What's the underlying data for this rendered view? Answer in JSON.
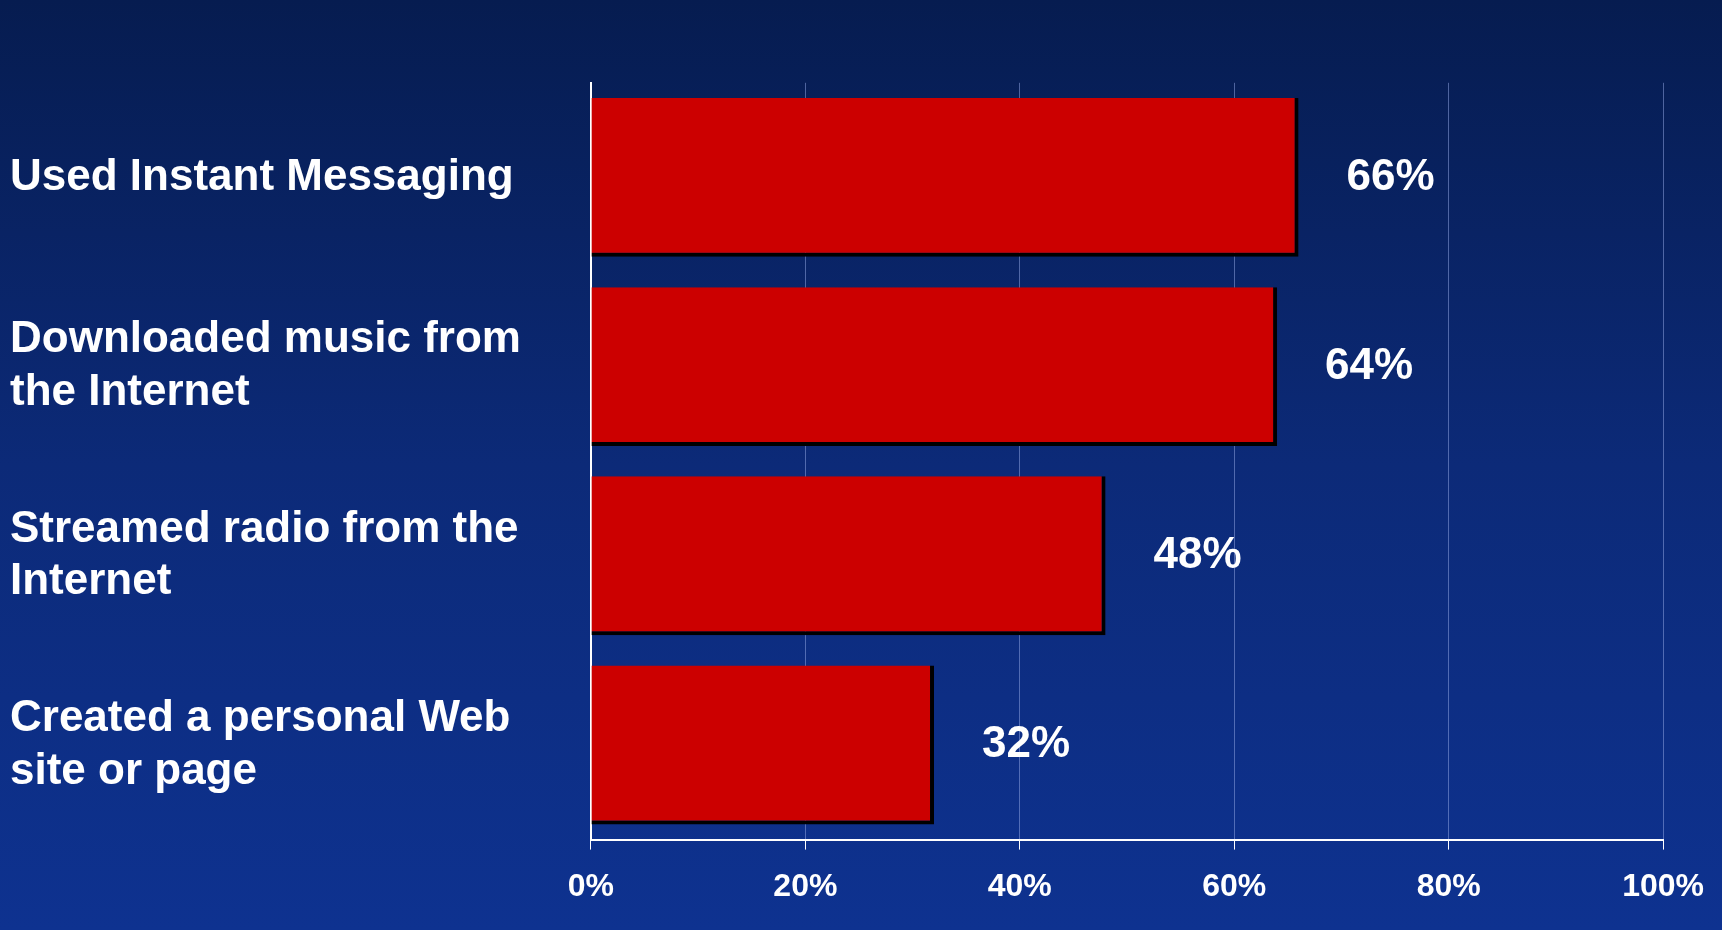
{
  "chart_data": {
    "type": "bar",
    "orientation": "horizontal",
    "categories": [
      "Used Instant Messaging",
      "Downloaded music from the Internet",
      "Streamed radio from the Internet",
      "Created a personal Web site or page"
    ],
    "values": [
      66,
      64,
      48,
      32
    ],
    "value_labels": [
      "66%",
      "64%",
      "48%",
      "32%"
    ],
    "color": "#cc0000",
    "xlim": [
      0,
      100
    ],
    "xticks": [
      {
        "value": 0,
        "label": "0%"
      },
      {
        "value": 20,
        "label": "20%"
      },
      {
        "value": 40,
        "label": "40%"
      },
      {
        "value": 60,
        "label": "60%"
      },
      {
        "value": 80,
        "label": "80%"
      },
      {
        "value": 100,
        "label": "100%"
      }
    ],
    "grid": "x",
    "legend": false
  }
}
